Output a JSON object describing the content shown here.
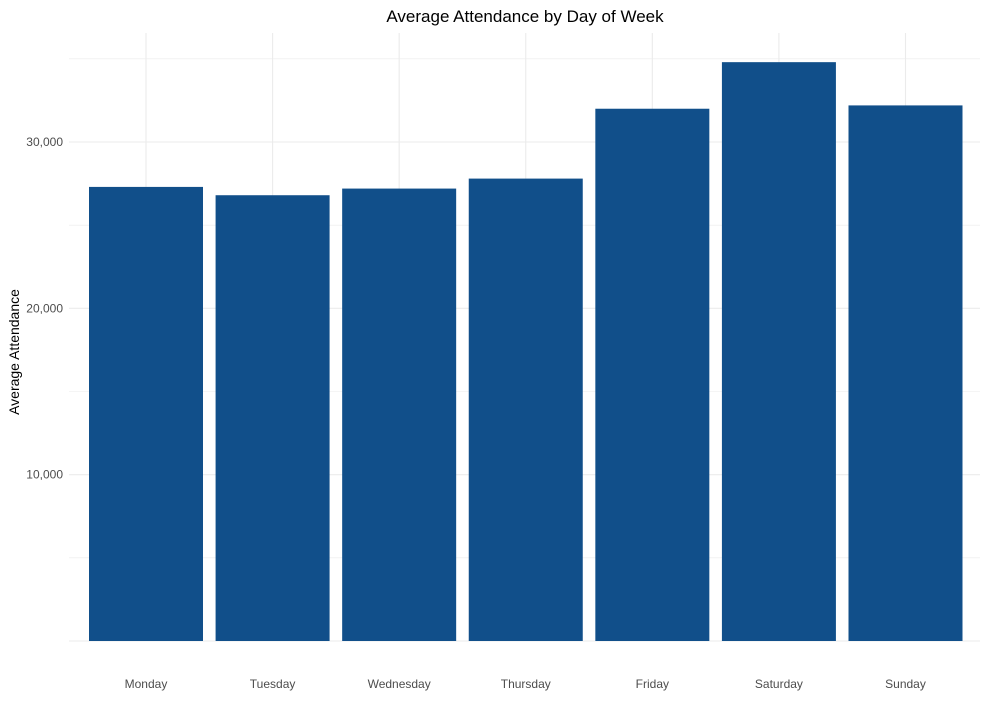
{
  "chart_data": {
    "type": "bar",
    "title": "Average Attendance by Day of Week",
    "xlabel": "",
    "ylabel": "Average Attendance",
    "categories": [
      "Monday",
      "Tuesday",
      "Wednesday",
      "Thursday",
      "Friday",
      "Saturday",
      "Sunday"
    ],
    "values": [
      27300,
      26800,
      27200,
      27800,
      32000,
      34800,
      32200
    ],
    "ylim": [
      0,
      35000
    ],
    "y_ticks": [
      10000,
      20000,
      30000
    ],
    "y_tick_labels": [
      "10,000",
      "20,000",
      "30,000"
    ],
    "grid": true,
    "legend": "none",
    "bar_color": "#114f8a",
    "grid_color": "#ebebeb",
    "text_color": "#4d4d4d",
    "title_color": "#000000"
  }
}
